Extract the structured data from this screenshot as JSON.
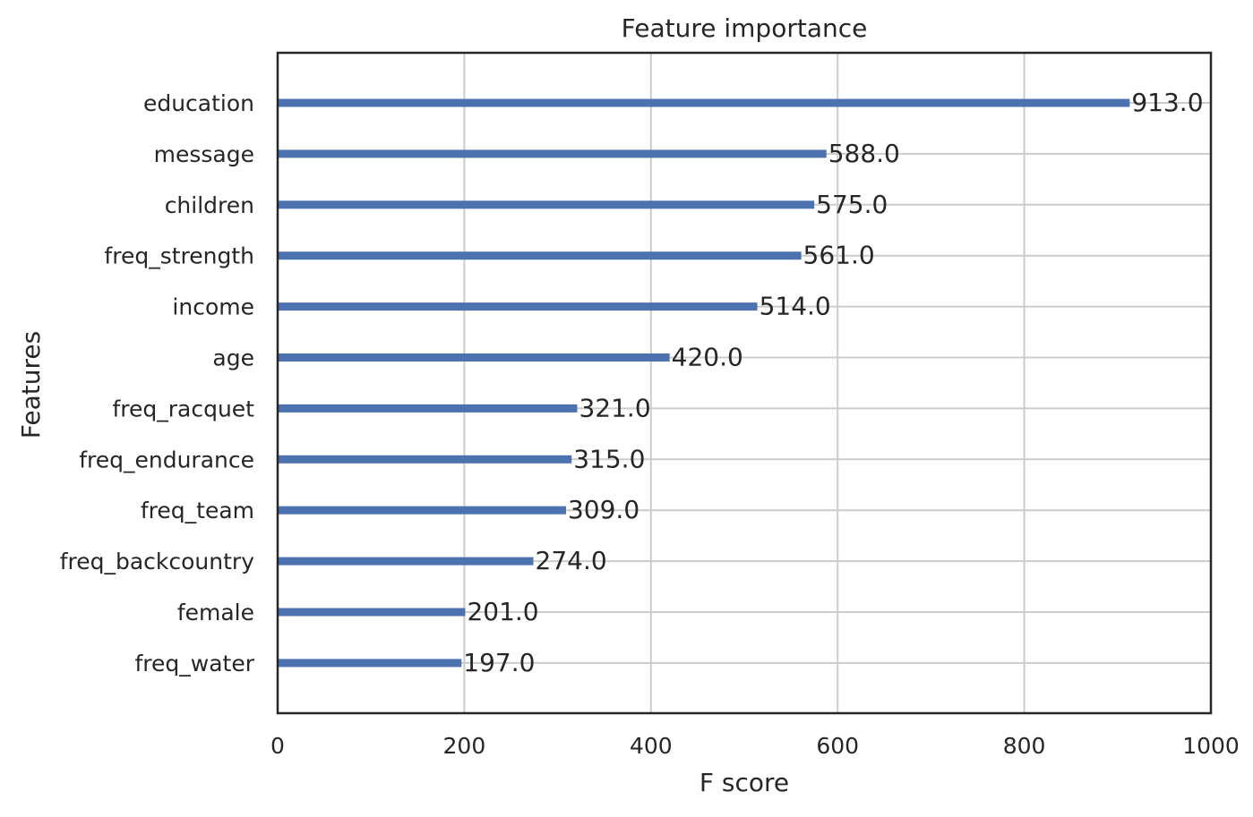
{
  "chart_data": {
    "type": "bar",
    "orientation": "horizontal",
    "title": "Feature importance",
    "xlabel": "F score",
    "ylabel": "Features",
    "xlim": [
      0,
      1000
    ],
    "xticks": [
      "0",
      "200",
      "400",
      "600",
      "800",
      "1000"
    ],
    "categories": [
      "education",
      "message",
      "children",
      "freq_strength",
      "income",
      "age",
      "freq_racquet",
      "freq_endurance",
      "freq_team",
      "freq_backcountry",
      "female",
      "freq_water"
    ],
    "values": [
      913.0,
      588.0,
      575.0,
      561.0,
      514.0,
      420.0,
      321.0,
      315.0,
      309.0,
      274.0,
      201.0,
      197.0
    ],
    "data_labels": [
      "913.0",
      "588.0",
      "575.0",
      "561.0",
      "514.0",
      "420.0",
      "321.0",
      "315.0",
      "309.0",
      "274.0",
      "201.0",
      "197.0"
    ],
    "grid": true,
    "legend": "none",
    "bar_color": "#4c72b0",
    "grid_color": "#cccccc",
    "frame_color": "#262626"
  }
}
